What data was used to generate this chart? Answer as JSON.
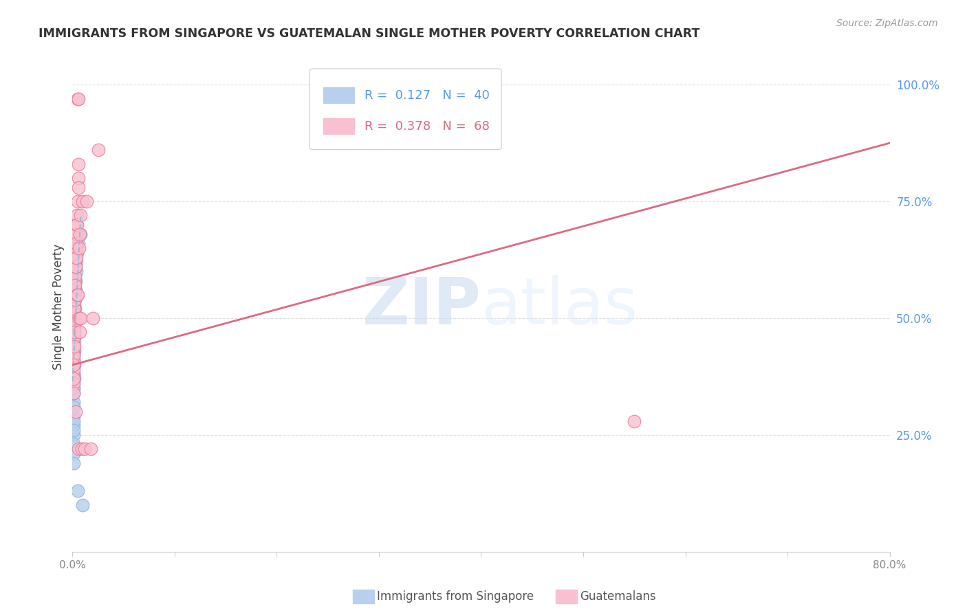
{
  "title": "IMMIGRANTS FROM SINGAPORE VS GUATEMALAN SINGLE MOTHER POVERTY CORRELATION CHART",
  "source": "Source: ZipAtlas.com",
  "ylabel": "Single Mother Poverty",
  "legend_blue_r": "0.127",
  "legend_blue_n": "40",
  "legend_pink_r": "0.378",
  "legend_pink_n": "68",
  "legend_blue_label": "Immigrants from Singapore",
  "legend_pink_label": "Guatemalans",
  "right_yticks": [
    "100.0%",
    "75.0%",
    "50.0%",
    "25.0%"
  ],
  "right_ytick_vals": [
    1.0,
    0.75,
    0.5,
    0.25
  ],
  "watermark_zip": "ZIP",
  "watermark_atlas": "atlas",
  "blue_points": [
    [
      0.0008,
      0.42
    ],
    [
      0.0008,
      0.38
    ],
    [
      0.0008,
      0.35
    ],
    [
      0.0008,
      0.32
    ],
    [
      0.0008,
      0.29
    ],
    [
      0.0008,
      0.27
    ],
    [
      0.0008,
      0.25
    ],
    [
      0.0008,
      0.23
    ],
    [
      0.0008,
      0.21
    ],
    [
      0.0008,
      0.19
    ],
    [
      0.001,
      0.4
    ],
    [
      0.001,
      0.37
    ],
    [
      0.001,
      0.34
    ],
    [
      0.001,
      0.31
    ],
    [
      0.001,
      0.28
    ],
    [
      0.001,
      0.26
    ],
    [
      0.0012,
      0.44
    ],
    [
      0.0012,
      0.41
    ],
    [
      0.0012,
      0.38
    ],
    [
      0.0012,
      0.35
    ],
    [
      0.0015,
      0.46
    ],
    [
      0.0015,
      0.43
    ],
    [
      0.0015,
      0.4
    ],
    [
      0.0015,
      0.37
    ],
    [
      0.0018,
      0.48
    ],
    [
      0.0018,
      0.45
    ],
    [
      0.002,
      0.5
    ],
    [
      0.002,
      0.47
    ],
    [
      0.0022,
      0.52
    ],
    [
      0.0022,
      0.49
    ],
    [
      0.0025,
      0.54
    ],
    [
      0.0028,
      0.56
    ],
    [
      0.003,
      0.58
    ],
    [
      0.0035,
      0.6
    ],
    [
      0.004,
      0.62
    ],
    [
      0.0045,
      0.64
    ],
    [
      0.005,
      0.13
    ],
    [
      0.006,
      0.66
    ],
    [
      0.008,
      0.68
    ],
    [
      0.01,
      0.1
    ]
  ],
  "pink_points": [
    [
      0.0005,
      0.38
    ],
    [
      0.0005,
      0.36
    ],
    [
      0.0008,
      0.4
    ],
    [
      0.0008,
      0.38
    ],
    [
      0.0008,
      0.36
    ],
    [
      0.0008,
      0.34
    ],
    [
      0.001,
      0.43
    ],
    [
      0.001,
      0.41
    ],
    [
      0.001,
      0.39
    ],
    [
      0.001,
      0.37
    ],
    [
      0.0012,
      0.46
    ],
    [
      0.0012,
      0.44
    ],
    [
      0.0012,
      0.42
    ],
    [
      0.0012,
      0.4
    ],
    [
      0.0015,
      0.5
    ],
    [
      0.0015,
      0.48
    ],
    [
      0.0015,
      0.46
    ],
    [
      0.0015,
      0.44
    ],
    [
      0.0018,
      0.53
    ],
    [
      0.0018,
      0.51
    ],
    [
      0.0018,
      0.49
    ],
    [
      0.0018,
      0.47
    ],
    [
      0.002,
      0.56
    ],
    [
      0.002,
      0.54
    ],
    [
      0.002,
      0.52
    ],
    [
      0.0022,
      0.58
    ],
    [
      0.0022,
      0.56
    ],
    [
      0.0022,
      0.54
    ],
    [
      0.0025,
      0.61
    ],
    [
      0.0025,
      0.59
    ],
    [
      0.0025,
      0.57
    ],
    [
      0.0028,
      0.63
    ],
    [
      0.0028,
      0.61
    ],
    [
      0.0028,
      0.3
    ],
    [
      0.003,
      0.65
    ],
    [
      0.003,
      0.63
    ],
    [
      0.003,
      0.61
    ],
    [
      0.0035,
      0.67
    ],
    [
      0.0035,
      0.65
    ],
    [
      0.0035,
      0.63
    ],
    [
      0.004,
      0.7
    ],
    [
      0.004,
      0.68
    ],
    [
      0.004,
      0.66
    ],
    [
      0.0045,
      0.72
    ],
    [
      0.0045,
      0.7
    ],
    [
      0.0045,
      0.55
    ],
    [
      0.005,
      0.75
    ],
    [
      0.005,
      0.55
    ],
    [
      0.005,
      0.97
    ],
    [
      0.0055,
      0.8
    ],
    [
      0.0055,
      0.78
    ],
    [
      0.0055,
      0.97
    ],
    [
      0.0055,
      0.22
    ],
    [
      0.006,
      0.83
    ],
    [
      0.0065,
      0.65
    ],
    [
      0.0065,
      0.5
    ],
    [
      0.007,
      0.68
    ],
    [
      0.007,
      0.47
    ],
    [
      0.008,
      0.72
    ],
    [
      0.008,
      0.5
    ],
    [
      0.009,
      0.22
    ],
    [
      0.01,
      0.75
    ],
    [
      0.012,
      0.22
    ],
    [
      0.014,
      0.75
    ],
    [
      0.018,
      0.22
    ],
    [
      0.02,
      0.5
    ],
    [
      0.025,
      0.86
    ],
    [
      0.55,
      0.28
    ]
  ],
  "blue_trend": [
    0.0,
    0.365,
    0.008,
    0.72
  ],
  "pink_trend": [
    0.0,
    0.4,
    0.8,
    0.875
  ],
  "xlim": [
    0.0,
    0.8
  ],
  "ylim": [
    0.0,
    1.05
  ],
  "bg_color": "#ffffff",
  "grid_color": "#e0e0e0",
  "blue_fill": "#b8d0ee",
  "blue_edge": "#8ab0d8",
  "pink_fill": "#f8c0d0",
  "pink_edge": "#e87090",
  "blue_line_color": "#a0b8d8",
  "pink_line_color": "#e06880",
  "title_color": "#333333",
  "right_axis_color": "#5599ee",
  "xtick_color": "#888888"
}
